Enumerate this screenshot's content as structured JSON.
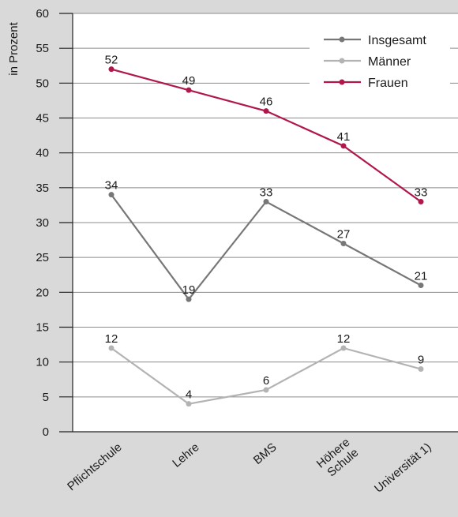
{
  "chart_data": {
    "type": "line",
    "categories": [
      "Pflichtschule",
      "Lehre",
      "BMS",
      "Höhere Schule",
      "Universität 1)"
    ],
    "category_lines": [
      [
        "Pflichtschule"
      ],
      [
        "Lehre"
      ],
      [
        "BMS"
      ],
      [
        "Höhere",
        "Schule"
      ],
      [
        "Universität 1)"
      ]
    ],
    "ylabel": "in Prozent",
    "ylim": [
      0,
      60
    ],
    "yticks": [
      0,
      5,
      10,
      15,
      20,
      25,
      30,
      35,
      40,
      45,
      50,
      55,
      60
    ],
    "grid": true,
    "legend_position": "top-right",
    "series": [
      {
        "name": "Insgesamt",
        "color": "#777777",
        "values": [
          34,
          19,
          33,
          27,
          21
        ]
      },
      {
        "name": "Männer",
        "color": "#b3b3b3",
        "values": [
          12,
          4,
          6,
          12,
          9
        ]
      },
      {
        "name": "Frauen",
        "color": "#b0174d",
        "values": [
          52,
          49,
          46,
          41,
          33
        ]
      }
    ]
  }
}
